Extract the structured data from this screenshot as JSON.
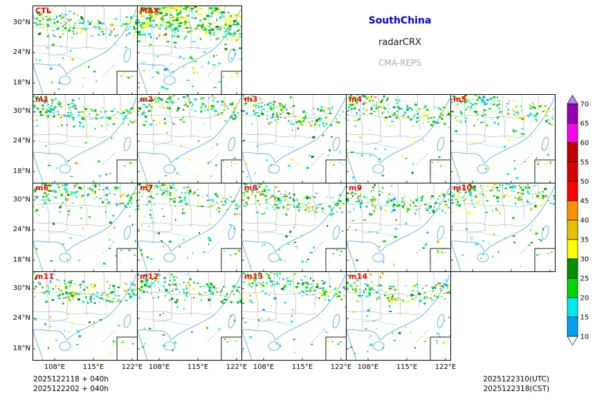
{
  "header": {
    "region_title": "SouthChina",
    "product_title": "radarCRX",
    "model_title": "CMA-REPS"
  },
  "panels": [
    {
      "label": "CTL",
      "intensity": "moderate"
    },
    {
      "label": "MAX",
      "intensity": "high"
    },
    {
      "label": "m1",
      "intensity": "moderate"
    },
    {
      "label": "m2",
      "intensity": "moderate"
    },
    {
      "label": "m3",
      "intensity": "moderate"
    },
    {
      "label": "m4",
      "intensity": "moderate"
    },
    {
      "label": "m5",
      "intensity": "moderate"
    },
    {
      "label": "m6",
      "intensity": "moderate"
    },
    {
      "label": "m7",
      "intensity": "moderate"
    },
    {
      "label": "m8",
      "intensity": "moderate"
    },
    {
      "label": "m9",
      "intensity": "moderate"
    },
    {
      "label": "m10",
      "intensity": "moderate"
    },
    {
      "label": "m11",
      "intensity": "moderate"
    },
    {
      "label": "m12",
      "intensity": "moderate"
    },
    {
      "label": "m13",
      "intensity": "moderate"
    },
    {
      "label": "m14",
      "intensity": "moderate"
    }
  ],
  "axes": {
    "lat_labels": [
      "30°N",
      "24°N",
      "18°N"
    ],
    "lon_labels": [
      "108°E",
      "115°E",
      "122°E"
    ]
  },
  "colorbar": {
    "labels_top_to_bottom": [
      "70",
      "65",
      "60",
      "55",
      "50",
      "45",
      "40",
      "35",
      "30",
      "25",
      "20",
      "15",
      "10"
    ],
    "colors_top_to_bottom": [
      "#9600B4",
      "#FF00F0",
      "#C00000",
      "#D60000",
      "#FF0000",
      "#FF9000",
      "#E7C000",
      "#FFFF00",
      "#019000",
      "#00D800",
      "#00ECEC",
      "#01A0F6"
    ],
    "over_color": "#AD90F0",
    "under_color": "#FFFFFF"
  },
  "footer": {
    "left_line1": "2025122118 + 040h",
    "left_line2": "2025122202 + 040h",
    "right_line1": "2025122310(UTC)",
    "right_line2": "2025122318(CST)"
  },
  "style": {
    "panel_label_color": "#FF0000",
    "region_title_color": "#0000DD",
    "model_title_color": "#A9A9A9",
    "coast_color": "#54AECE",
    "province_border_color": "#A9A9A9"
  },
  "chart_data": {
    "type": "heatmap",
    "subtype": "ensemble-radar-composite-reflectivity-maps",
    "title": "SouthChina radarCRX CMA-REPS",
    "panel_labels": [
      "CTL",
      "MAX",
      "m1",
      "m2",
      "m3",
      "m4",
      "m5",
      "m6",
      "m7",
      "m8",
      "m9",
      "m10",
      "m11",
      "m12",
      "m13",
      "m14"
    ],
    "grid_rows": [
      [
        "CTL",
        "MAX"
      ],
      [
        "m1",
        "m2",
        "m3",
        "m4",
        "m5"
      ],
      [
        "m6",
        "m7",
        "m8",
        "m9",
        "m10"
      ],
      [
        "m11",
        "m12",
        "m13",
        "m14"
      ]
    ],
    "colorbar_levels_dBZ": [
      10,
      15,
      20,
      25,
      30,
      35,
      40,
      45,
      50,
      55,
      60,
      65,
      70
    ],
    "lat_ticks": [
      "30°N",
      "24°N",
      "18°N"
    ],
    "lon_ticks": [
      "108°E",
      "115°E",
      "122°E"
    ],
    "init_times": [
      "2025122118 + 040h",
      "2025122202 + 040h"
    ],
    "valid_times": [
      "2025122310(UTC)",
      "2025122318(CST)"
    ],
    "legend_position": "right",
    "notes": "16 map panels of forecast radar reflectivity over South China; echoes (10-45 dBZ, cyan/green/yellow) concentrated along a band near the northern edge of each panel; MAX panel shows the densest, strongest echoes."
  }
}
